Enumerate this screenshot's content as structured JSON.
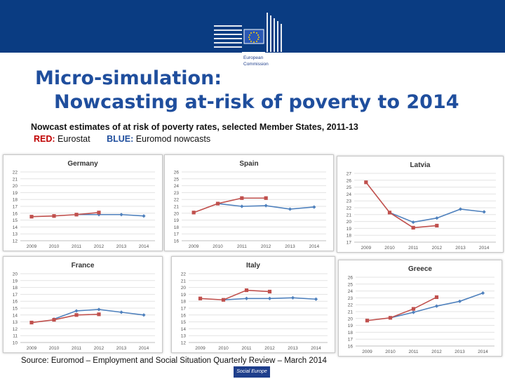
{
  "header": {
    "title_line1": "Micro-simulation:",
    "title_line2": "Nowcasting at-risk of poverty to 2014",
    "logo_text": [
      "European",
      "Commission"
    ],
    "logo_icon": "eu-flag-building-icon"
  },
  "subtitle": "Nowcast estimates of at risk of poverty rates, selected Member States, 2011-13",
  "legend": {
    "red_label": "RED:",
    "red_text": "Eurostat",
    "blue_label": "BLUE:",
    "blue_text": "Euromod nowcasts"
  },
  "colors": {
    "eurostat": "#c0504d",
    "euromod": "#4f81bd",
    "title": "#1f4e9d",
    "band": "#0a3c82"
  },
  "chart_data": [
    {
      "type": "line",
      "title": "Germany",
      "x": [
        "2009",
        "2010",
        "2011",
        "2012",
        "2013",
        "2014"
      ],
      "ylim": [
        12,
        22
      ],
      "yticks": [
        12,
        13,
        14,
        15,
        16,
        17,
        18,
        19,
        20,
        21,
        22
      ],
      "series": [
        {
          "name": "Eurostat",
          "color": "red",
          "values": [
            15.5,
            15.6,
            15.8,
            16.1,
            null,
            null
          ]
        },
        {
          "name": "Euromod nowcasts",
          "color": "blue",
          "values": [
            null,
            null,
            15.8,
            15.8,
            15.8,
            15.6
          ]
        }
      ]
    },
    {
      "type": "line",
      "title": "Spain",
      "x": [
        "2009",
        "2010",
        "2011",
        "2012",
        "2013",
        "2014"
      ],
      "ylim": [
        16,
        26
      ],
      "yticks": [
        16,
        17,
        18,
        19,
        20,
        21,
        22,
        23,
        24,
        25,
        26
      ],
      "series": [
        {
          "name": "Eurostat",
          "color": "red",
          "values": [
            20.1,
            21.4,
            22.2,
            22.2,
            null,
            null
          ]
        },
        {
          "name": "Euromod nowcasts",
          "color": "blue",
          "values": [
            null,
            21.4,
            21.0,
            21.1,
            20.6,
            20.9
          ]
        }
      ]
    },
    {
      "type": "line",
      "title": "Latvia",
      "x": [
        "2009",
        "2010",
        "2011",
        "2012",
        "2013",
        "2014"
      ],
      "ylim": [
        17,
        27
      ],
      "yticks": [
        17,
        18,
        19,
        20,
        21,
        22,
        23,
        24,
        25,
        26,
        27
      ],
      "series": [
        {
          "name": "Eurostat",
          "color": "red",
          "values": [
            25.7,
            21.3,
            19.1,
            19.4,
            null,
            null
          ]
        },
        {
          "name": "Euromod nowcasts",
          "color": "blue",
          "values": [
            null,
            21.3,
            19.9,
            20.5,
            21.8,
            21.4
          ]
        }
      ]
    },
    {
      "type": "line",
      "title": "France",
      "x": [
        "2009",
        "2010",
        "2011",
        "2012",
        "2013",
        "2014"
      ],
      "ylim": [
        10,
        20
      ],
      "yticks": [
        10,
        11,
        12,
        13,
        14,
        15,
        16,
        17,
        18,
        19,
        20
      ],
      "series": [
        {
          "name": "Eurostat",
          "color": "red",
          "values": [
            12.9,
            13.3,
            14.0,
            14.1,
            null,
            null
          ]
        },
        {
          "name": "Euromod nowcasts",
          "color": "blue",
          "values": [
            null,
            13.4,
            14.6,
            14.8,
            14.4,
            14.0
          ]
        }
      ]
    },
    {
      "type": "line",
      "title": "Italy",
      "x": [
        "2009",
        "2010",
        "2011",
        "2012",
        "2013",
        "2014"
      ],
      "ylim": [
        12,
        22
      ],
      "yticks": [
        12,
        13,
        14,
        15,
        16,
        17,
        18,
        19,
        20,
        21,
        22
      ],
      "series": [
        {
          "name": "Eurostat",
          "color": "red",
          "values": [
            18.4,
            18.2,
            19.6,
            19.4,
            null,
            null
          ]
        },
        {
          "name": "Euromod nowcasts",
          "color": "blue",
          "values": [
            null,
            18.2,
            18.4,
            18.4,
            18.5,
            18.3
          ]
        }
      ]
    },
    {
      "type": "line",
      "title": "Greece",
      "x": [
        "2009",
        "2010",
        "2011",
        "2012",
        "2013",
        "2014"
      ],
      "ylim": [
        16,
        26
      ],
      "yticks": [
        16,
        17,
        18,
        19,
        20,
        21,
        22,
        23,
        24,
        25,
        26
      ],
      "series": [
        {
          "name": "Eurostat",
          "color": "red",
          "values": [
            19.7,
            20.1,
            21.4,
            23.1,
            null,
            null
          ]
        },
        {
          "name": "Euromod nowcasts",
          "color": "blue",
          "values": [
            null,
            20.1,
            20.9,
            21.8,
            22.5,
            23.7
          ]
        }
      ]
    }
  ],
  "source": "Source: Euromod – Employment and Social Situation Quarterly Review – March 2014",
  "footer_badge": "Social Europe"
}
